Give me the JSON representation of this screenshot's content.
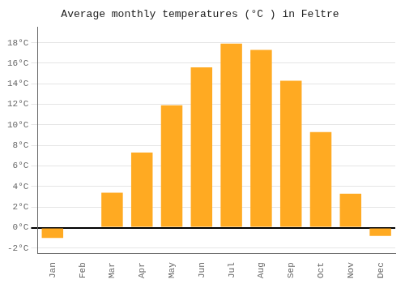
{
  "chart_data": {
    "type": "bar",
    "title": "Average monthly temperatures (°C ) in Feltre",
    "categories": [
      "Jan",
      "Feb",
      "Mar",
      "Apr",
      "May",
      "Jun",
      "Jul",
      "Aug",
      "Sep",
      "Oct",
      "Nov",
      "Dec"
    ],
    "values": [
      -1.0,
      0.0,
      3.4,
      7.3,
      11.9,
      15.6,
      17.9,
      17.3,
      14.3,
      9.3,
      3.3,
      -0.8
    ],
    "color": "#FFAA22",
    "ylim": [
      -2.5,
      19.5
    ],
    "yticks": [
      {
        "value": -2,
        "label": "-2°C"
      },
      {
        "value": 0,
        "label": "0°C"
      },
      {
        "value": 2,
        "label": "2°C"
      },
      {
        "value": 4,
        "label": "4°C"
      },
      {
        "value": 6,
        "label": "6°C"
      },
      {
        "value": 8,
        "label": "8°C"
      },
      {
        "value": 10,
        "label": "10°C"
      },
      {
        "value": 12,
        "label": "12°C"
      },
      {
        "value": 14,
        "label": "14°C"
      },
      {
        "value": 16,
        "label": "16°C"
      },
      {
        "value": 18,
        "label": "18°C"
      }
    ],
    "grid": true
  }
}
